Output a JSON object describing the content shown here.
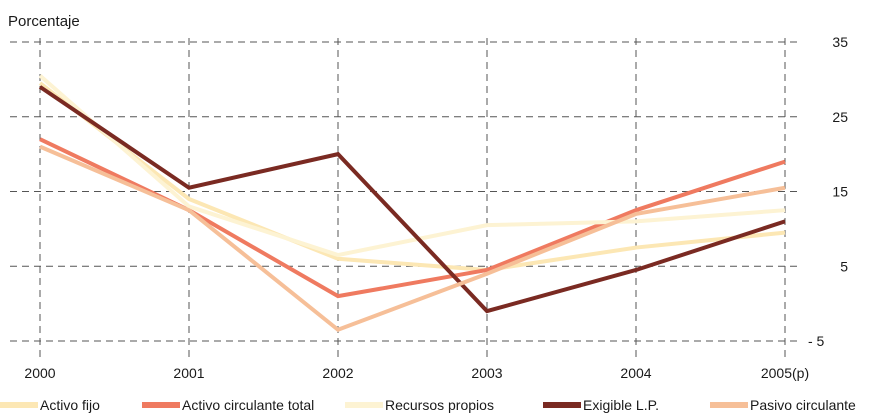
{
  "chart_data": {
    "type": "line",
    "ylabel": "Porcentaje",
    "categories": [
      "2000",
      "2001",
      "2002",
      "2003",
      "2004",
      "2005(p)"
    ],
    "ylim": [
      -5,
      35
    ],
    "yticks": [
      35,
      25,
      15,
      5,
      -5
    ],
    "ytick_labels": [
      "35",
      "25",
      "15",
      "5",
      "- 5"
    ],
    "grid": true,
    "legend_position": "bottom",
    "series": [
      {
        "name": "Activo fijo",
        "color": "#fce7b4",
        "values": [
          29.5,
          14.0,
          6.0,
          4.5,
          7.5,
          9.5
        ]
      },
      {
        "name": "Activo circulante total",
        "color": "#ef7a60",
        "values": [
          22.0,
          12.5,
          1.0,
          4.5,
          12.5,
          19.0
        ]
      },
      {
        "name": "Recursos propios",
        "color": "#fdf3d3",
        "values": [
          30.5,
          13.0,
          6.5,
          10.5,
          11.0,
          12.5
        ]
      },
      {
        "name": "Exigible L.P.",
        "color": "#7a2a22",
        "values": [
          29.0,
          15.5,
          20.0,
          -1.0,
          4.5,
          11.0
        ]
      },
      {
        "name": "Pasivo circulante",
        "color": "#f6bf98",
        "values": [
          21.0,
          12.5,
          -3.5,
          4.0,
          12.0,
          15.5
        ]
      }
    ]
  }
}
